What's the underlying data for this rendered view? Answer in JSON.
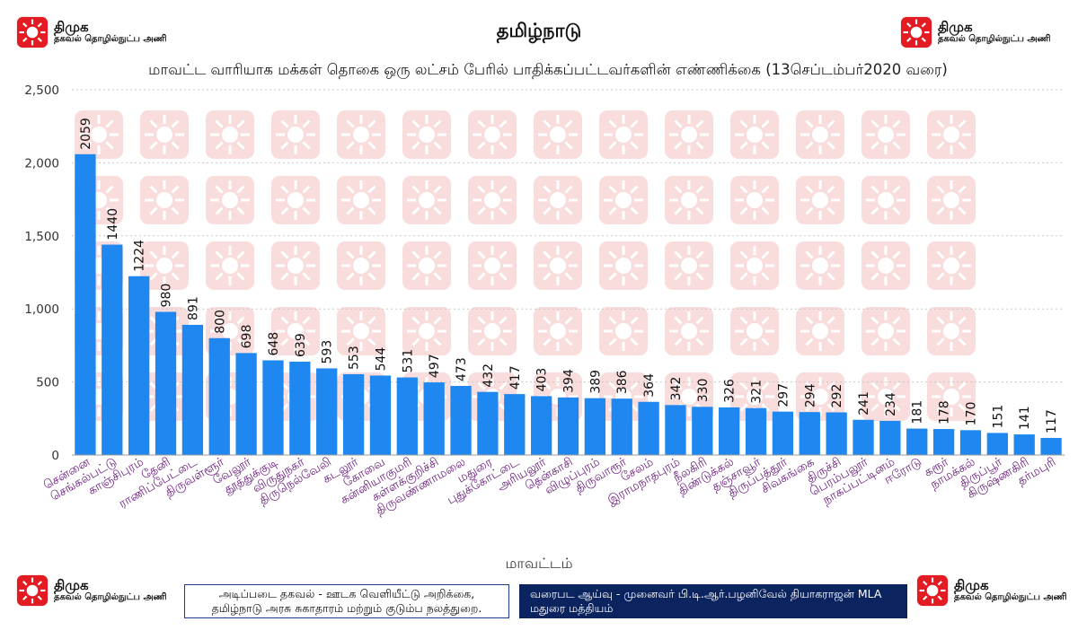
{
  "header": {
    "title": "தமிழ்நாடு",
    "subtitle": "மாவட்ட வாரியாக மக்கள் தொகை ஒரு லட்சம் பேரில் பாதிக்கப்பட்டவர்களின் எண்ணிக்கை (13செப்டம்பர்2020 வரை)"
  },
  "logo": {
    "name": "திமுக",
    "tagline": "தகவல் தொழில்நுட்ப அணி"
  },
  "footer": {
    "source_line1": "அடிப்படை தகவல் - ஊடக வெளியீட்டு அறிக்கை,",
    "source_line2": "தமிழ்நாடு அரசு சுகாதாரம் மற்றும் குடும்ப நலத்துறை.",
    "credit_line1": "வரைபட ஆய்வு - முனைவர் பி.டி.ஆர்.பழனிவேல் தியாகராஜன் MLA",
    "credit_line2": "மதுரை மத்தியம்"
  },
  "colors": {
    "bar": "#1e88f0",
    "label": "#6a1b7e",
    "logo_red": "#e31b23",
    "watermark": "#f9d9d9"
  },
  "chart_data": {
    "type": "bar",
    "title": "மாவட்ட வாரியாக மக்கள் தொகை ஒரு லட்சம் பேரில் பாதிக்கப்பட்டவர்களின் எண்ணிக்கை (13செப்டம்பர்2020 வரை)",
    "xlabel": "மாவட்டம்",
    "ylabel": "",
    "ylim": [
      0,
      2500
    ],
    "yticks": [
      0,
      500,
      1000,
      1500,
      2000,
      2500
    ],
    "ytick_labels": [
      "0",
      "500",
      "1,000",
      "1,500",
      "2,000",
      "2,500"
    ],
    "grid": true,
    "categories": [
      "சென்னை",
      "செங்கல்பட்டு",
      "காஞ்சிபுரம்",
      "தேனி",
      "ராணிப்பேட்டை",
      "திருவள்ளூர்",
      "வேலூர்",
      "தூத்துக்குடி",
      "விருதுநகர்",
      "திருநெல்வேலி",
      "கடலூர்",
      "கோவை",
      "கன்னியாகுமரி",
      "கள்ளக்குறிச்சி",
      "திருவண்ணாமலை",
      "மதுரை",
      "புதுக்கோட்டை",
      "அரியலூர்",
      "தென்காசி",
      "விழுப்புரம்",
      "திருவாரூர்",
      "சேலம்",
      "இராமநாதபுரம்",
      "நீலகிரி",
      "திண்டுக்கல்",
      "தஞ்சாவூர்",
      "திருப்பத்தூர்",
      "சிவகங்கை",
      "திருச்சி",
      "பெரம்பலூர்",
      "நாகப்பட்டினம்",
      "ஈரோடு",
      "கரூர்",
      "நாமக்கல்",
      "திருப்பூர்",
      "கிருஷ்ணகிரி",
      "தர்மபுரி"
    ],
    "values": [
      2059,
      1440,
      1224,
      980,
      891,
      800,
      698,
      648,
      639,
      593,
      553,
      544,
      531,
      497,
      473,
      432,
      417,
      403,
      394,
      389,
      386,
      364,
      342,
      330,
      326,
      321,
      297,
      294,
      292,
      241,
      234,
      181,
      178,
      170,
      151,
      141,
      117
    ]
  }
}
